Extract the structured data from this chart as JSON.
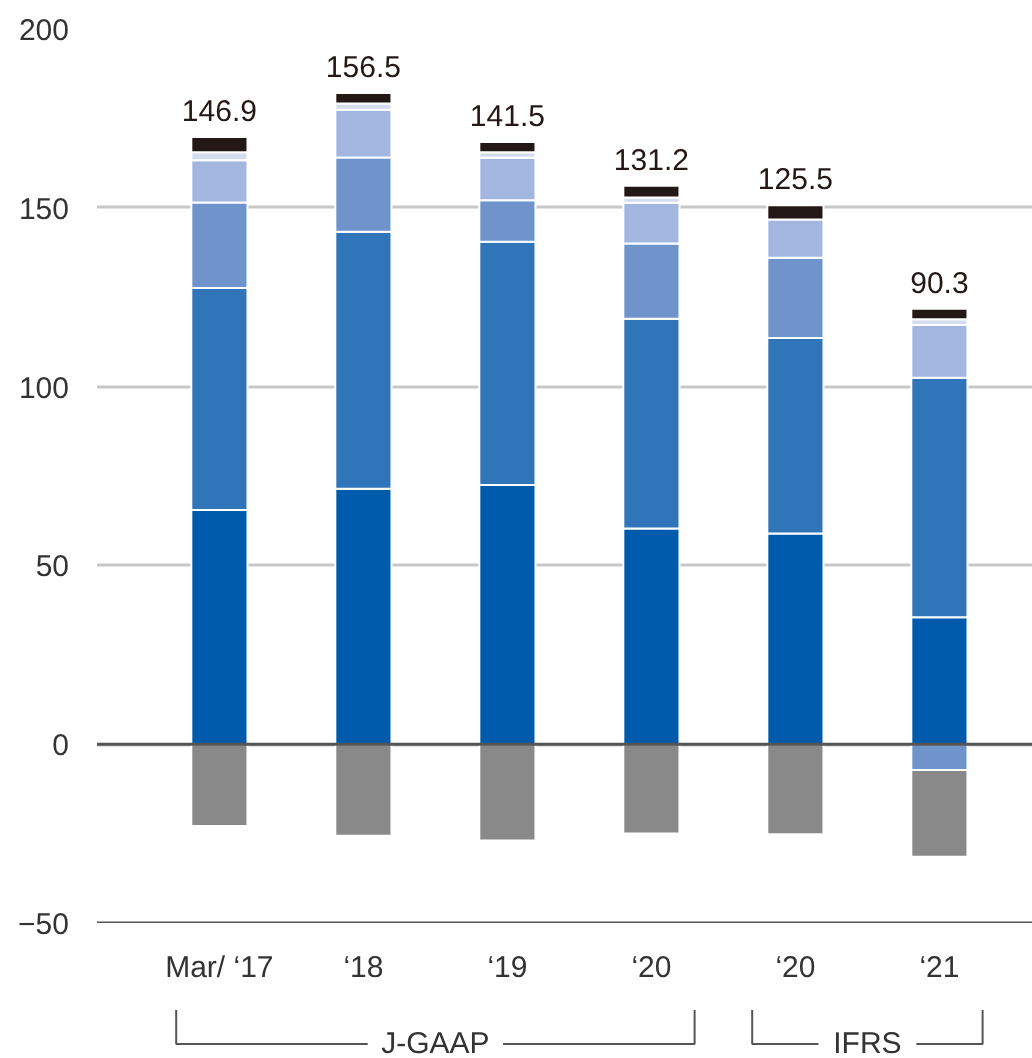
{
  "chart_data": {
    "type": "bar",
    "stacked": true,
    "categories": [
      "Mar/ ‘17",
      "‘18",
      "‘19",
      "‘20",
      "‘20",
      "‘21"
    ],
    "series": [
      {
        "color": "#005bac",
        "values": [
          65.5,
          71.4,
          72.5,
          60.3,
          58.9,
          35.5
        ]
      },
      {
        "color": "#3075b9",
        "values": [
          62.1,
          71.9,
          68.0,
          58.7,
          54.7,
          67.0
        ]
      },
      {
        "color": "#6f94cc",
        "values": [
          23.9,
          20.8,
          11.6,
          21.0,
          22.4,
          -7.2
        ]
      },
      {
        "color": "#a3b6df",
        "values": [
          11.8,
          13.3,
          11.9,
          11.4,
          10.7,
          14.7
        ]
      },
      {
        "color": "#d3ddef",
        "values": [
          2.2,
          1.8,
          1.5,
          1.5,
          null,
          1.6
        ]
      },
      {
        "color": "#231815",
        "values": [
          4.3,
          2.9,
          2.9,
          3.3,
          4.0,
          3.0
        ]
      },
      {
        "color": "#898989",
        "values": [
          -22.9,
          -25.6,
          -26.9,
          -25.0,
          -25.2,
          -24.3
        ]
      }
    ],
    "totals": [
      "146.9",
      "156.5",
      "141.5",
      "131.2",
      "125.5",
      "90.3"
    ],
    "ylim": [
      -50,
      200
    ],
    "yticks": [
      -50,
      0,
      50,
      100,
      150,
      200
    ],
    "grid": "y",
    "annotations": [
      "J-GAAP",
      "IFRS"
    ]
  }
}
